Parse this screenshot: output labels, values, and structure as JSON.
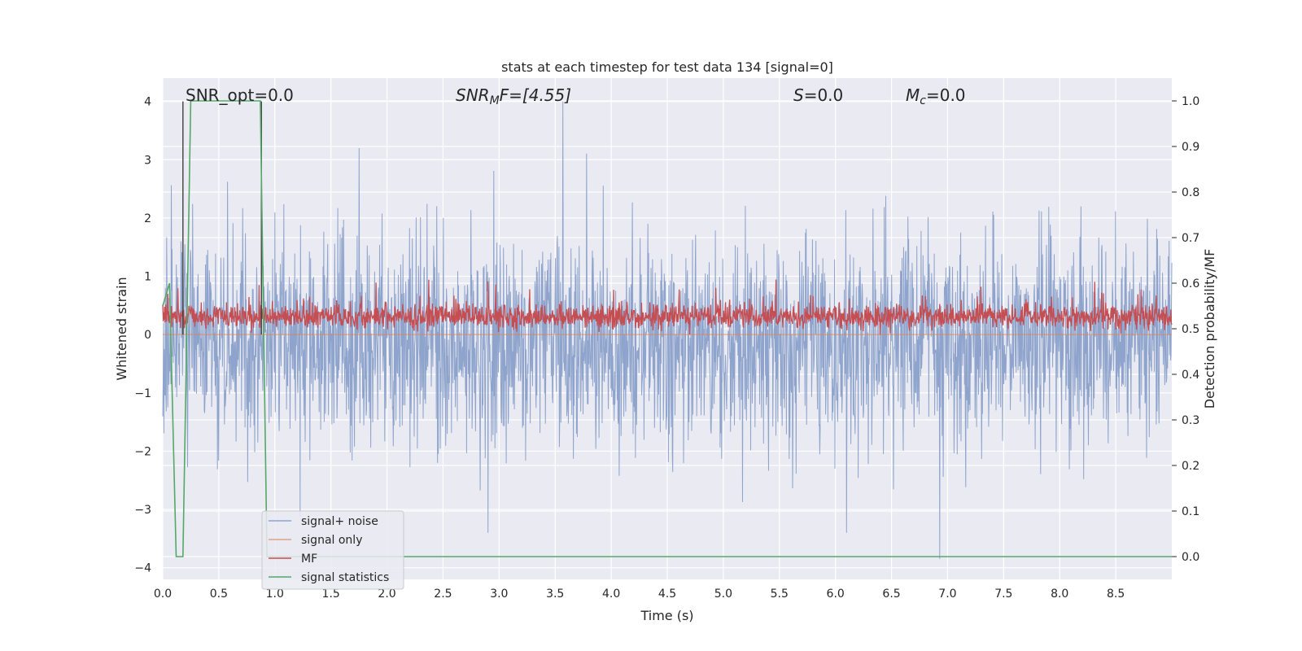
{
  "chart_data": {
    "type": "line",
    "title": "stats at each timestep for test data 134 [signal=0]",
    "xlabel": "Time (s)",
    "ylabel_left": "Whitened strain",
    "ylabel_right": "Detection probability/MF",
    "xlim": [
      0.0,
      9.0
    ],
    "ylim_left": [
      -4.2,
      4.4
    ],
    "ylim_right": [
      -0.05,
      1.05
    ],
    "x_ticks": [
      0.0,
      0.5,
      1.0,
      1.5,
      2.0,
      2.5,
      3.0,
      3.5,
      4.0,
      4.5,
      5.0,
      5.5,
      6.0,
      6.5,
      7.0,
      7.5,
      8.0,
      8.5
    ],
    "x_tick_labels": [
      "0.0",
      "0.5",
      "1.0",
      "1.5",
      "2.0",
      "2.5",
      "3.0",
      "3.5",
      "4.0",
      "4.5",
      "5.0",
      "5.5",
      "6.0",
      "6.5",
      "7.0",
      "7.5",
      "8.0",
      "8.5"
    ],
    "y_left_ticks": [
      -4,
      -3,
      -2,
      -1,
      0,
      1,
      2,
      3,
      4
    ],
    "y_left_tick_labels": [
      "−4",
      "−3",
      "−2",
      "−1",
      "0",
      "1",
      "2",
      "3",
      "4"
    ],
    "y_right_ticks": [
      0.0,
      0.1,
      0.2,
      0.3,
      0.4,
      0.5,
      0.6,
      0.7,
      0.8,
      0.9,
      1.0
    ],
    "y_right_tick_labels": [
      "0.0",
      "0.1",
      "0.2",
      "0.3",
      "0.4",
      "0.5",
      "0.6",
      "0.7",
      "0.8",
      "0.9",
      "1.0"
    ],
    "grid": true,
    "legend_position": "lower-left",
    "annotations": {
      "snr_opt": "SNR_opt=0.0",
      "snr_mf_base": "SNR",
      "snr_mf_sub": "M",
      "snr_mf_rest": "F=[4.55]",
      "s_base": "S",
      "s_rest": "=0.0",
      "mc_base": "M",
      "mc_sub": "c",
      "mc_rest": "=0.0"
    },
    "series": [
      {
        "name": "signal+ noise",
        "axis": "left",
        "color": "#8ea4cc",
        "style": "noise",
        "x_range": [
          0.0,
          9.0
        ],
        "mean": -0.1,
        "typical_range": [
          -1.9,
          1.9
        ],
        "max": 4.0,
        "min": -3.85,
        "spikes": [
          [
            3.57,
            4.0
          ],
          [
            1.75,
            3.2
          ],
          [
            6.93,
            -3.85
          ],
          [
            2.9,
            -3.4
          ],
          [
            6.1,
            -3.4
          ]
        ]
      },
      {
        "name": "signal only",
        "axis": "left",
        "color": "#dd8452",
        "values_constant": 0.0
      },
      {
        "name": "MF",
        "axis": "left",
        "color": "#c44e52",
        "style": "noise",
        "x_range": [
          0.0,
          9.0
        ],
        "mean": 0.3,
        "typical_range": [
          0.0,
          0.7
        ],
        "max": 0.95
      },
      {
        "name": "signal statistics",
        "axis": "right",
        "color": "#55a868",
        "x": [
          0.0,
          0.06,
          0.12,
          0.18,
          0.25,
          0.87,
          0.93,
          1.0,
          9.0
        ],
        "y": [
          0.55,
          0.6,
          0.0,
          0.0,
          1.0,
          1.0,
          0.0,
          0.0,
          0.0
        ]
      }
    ],
    "markers": [
      {
        "x": 0.18,
        "y_top": 4.0,
        "color": "#404040"
      },
      {
        "x": 0.88,
        "y_top": 4.0,
        "color": "#404040"
      }
    ]
  }
}
